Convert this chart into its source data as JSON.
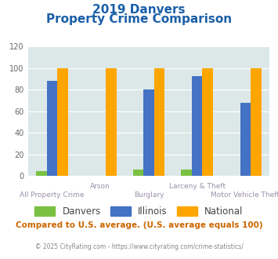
{
  "title_line1": "2019 Danvers",
  "title_line2": "Property Crime Comparison",
  "categories": [
    "All Property Crime",
    "Arson",
    "Burglary",
    "Larceny & Theft",
    "Motor Vehicle Theft"
  ],
  "danvers": [
    5,
    0,
    6,
    6,
    0
  ],
  "illinois": [
    88,
    0,
    80,
    93,
    68
  ],
  "national": [
    100,
    100,
    100,
    100,
    100
  ],
  "color_danvers": "#7ac143",
  "color_illinois": "#4472c4",
  "color_national": "#ffa500",
  "ylim": [
    0,
    120
  ],
  "yticks": [
    0,
    20,
    40,
    60,
    80,
    100,
    120
  ],
  "background_color": "#dce8e8",
  "note": "Compared to U.S. average. (U.S. average equals 100)",
  "footer": "© 2025 CityRating.com - https://www.cityrating.com/crime-statistics/",
  "title_color": "#1a5fa8",
  "xlabel_color_top": "#9b8faa",
  "xlabel_color_bot": "#9b8faa",
  "note_color": "#cc6600",
  "footer_color": "#888888",
  "bar_width": 0.22
}
